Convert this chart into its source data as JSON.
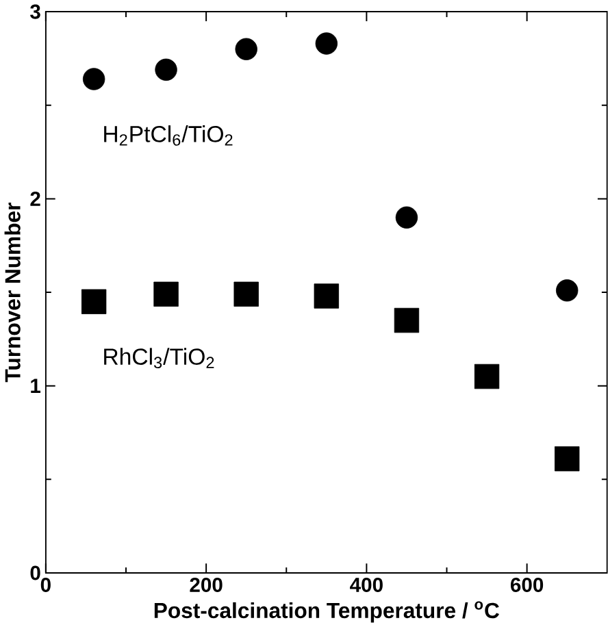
{
  "chart_data": {
    "type": "scatter",
    "xlabel": "Post-calcination Temperature /  $^{o}$C",
    "ylabel": "Turnover Number",
    "xlim": [
      0,
      700
    ],
    "ylim": [
      0,
      3
    ],
    "xticks": [
      0,
      200,
      400,
      600
    ],
    "yticks": [
      0,
      1,
      2,
      3
    ],
    "grid": false,
    "series": [
      {
        "name": "H$_{2}$PtCl$_{6}$/TiO$_{2}$",
        "color": "#000000",
        "marker": "circle",
        "x": [
          60,
          150,
          250,
          350,
          450,
          650
        ],
        "values": [
          2.64,
          2.69,
          2.8,
          2.83,
          1.9,
          1.51
        ]
      },
      {
        "name": "RhCl$_{3}$/TiO$_{2}$",
        "color": "#000000",
        "marker": "square",
        "x": [
          60,
          150,
          250,
          350,
          450,
          550,
          650
        ],
        "values": [
          1.45,
          1.49,
          1.49,
          1.48,
          1.35,
          1.05,
          0.61
        ]
      }
    ]
  }
}
